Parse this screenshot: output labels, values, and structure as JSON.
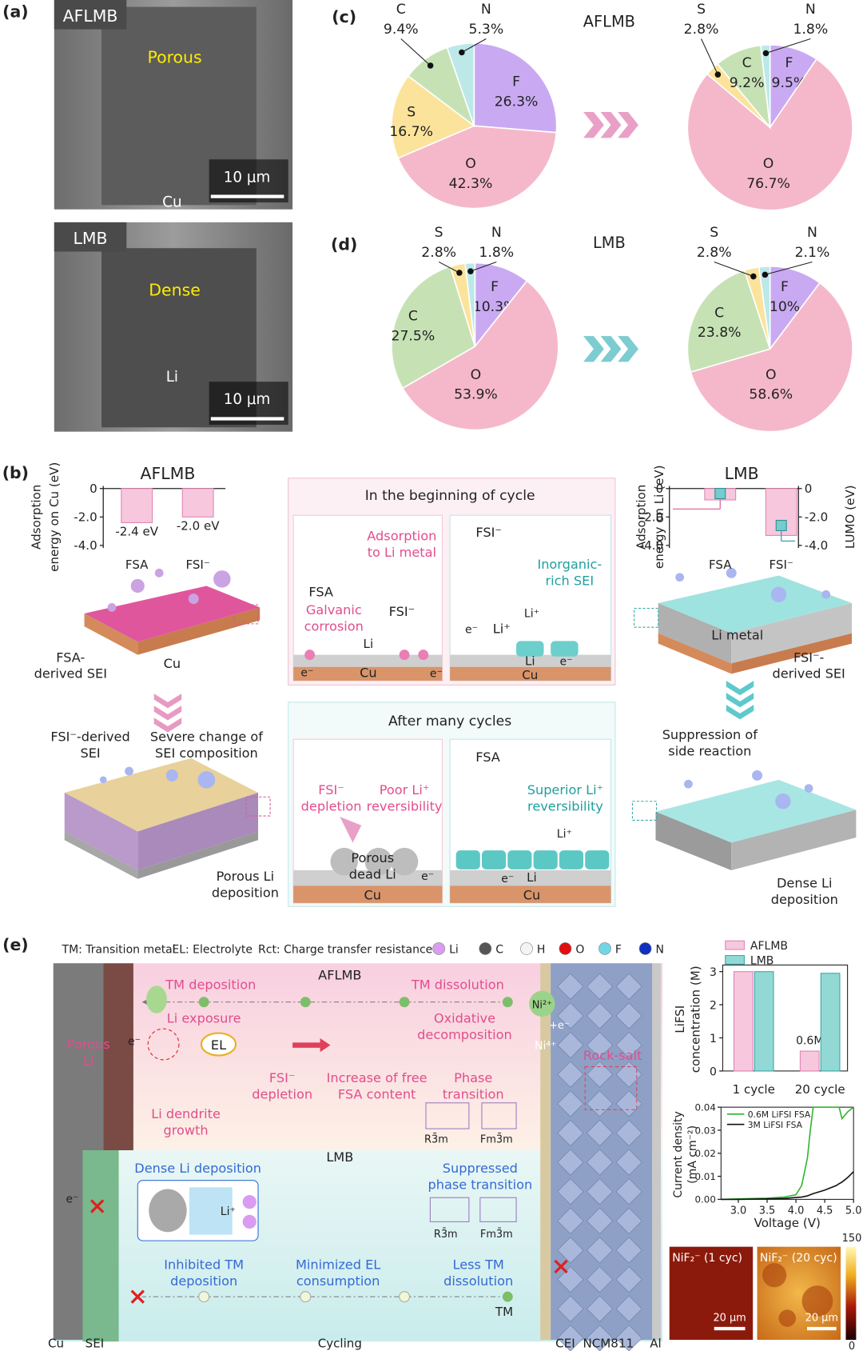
{
  "panel_labels": [
    "(a)",
    "(b)",
    "(c)",
    "(d)",
    "(e)"
  ],
  "panel_a": {
    "top": {
      "tag": "AFLMB",
      "region": "Porous",
      "substrate": "Cu",
      "scale_bar": "10 μm"
    },
    "bottom": {
      "tag": "LMB",
      "region": "Dense",
      "substrate": "Li",
      "scale_bar": "10 μm"
    }
  },
  "panel_c": {
    "title": "AFLMB"
  },
  "panel_d": {
    "title": "LMB"
  },
  "panel_b": {
    "afl_title": "AFLMB",
    "lmb_title": "LMB",
    "afl_ylabel": [
      "Adsorption",
      "energy on Cu (eV)"
    ],
    "lmb_ylabel": [
      "Adsorption",
      "energy on Li (eV)"
    ],
    "lmb_y2label": "LUMO (eV)",
    "begin": {
      "title": "In the beginning of cycle",
      "adsorption": [
        "Adsorption",
        "to Li metal"
      ],
      "fsa": "FSA",
      "galvanic": [
        "Galvanic",
        "corrosion"
      ],
      "fsi_left": "FSI⁻",
      "li_left": "Li",
      "cu_left": "Cu",
      "e_left1": "e⁻",
      "e_left2": "e⁻",
      "fsi_right": "FSI⁻",
      "inorganic": [
        "Inorganic-",
        "rich SEI"
      ],
      "e_right1": "e⁻",
      "li_ion1": "Li⁺",
      "li_ion2": "Li⁺",
      "li_right": "Li",
      "e_right2": "e⁻",
      "cu_right": "Cu"
    },
    "after": {
      "title": "After many cycles",
      "depletion": [
        "FSI⁻",
        "depletion"
      ],
      "poor": [
        "Poor Li⁺",
        "reversibility"
      ],
      "dead": [
        "Porous",
        "dead Li"
      ],
      "e_left": "e⁻",
      "cu_left": "Cu",
      "fsa": "FSA",
      "superior": [
        "Superior Li⁺",
        "reversibility"
      ],
      "li_ion": "Li⁺",
      "e_right": "e⁻",
      "li_right": "Li",
      "cu_right": "Cu"
    },
    "afl_slab": {
      "sei": [
        "FSA-",
        "derived SEI"
      ],
      "cu": "Cu",
      "fsi_sei": [
        "FSI⁻-derived",
        "SEI"
      ],
      "change": [
        "Severe change of",
        "SEI composition"
      ],
      "porous": [
        "Porous Li",
        "deposition"
      ]
    },
    "lmb_slab": {
      "metal": "Li metal",
      "sei": [
        "FSI⁻-",
        "derived SEI"
      ],
      "suppression": [
        "Suppression of",
        "side reaction"
      ],
      "dense": [
        "Dense Li",
        "deposition"
      ]
    }
  },
  "panel_e": {
    "legend": [
      "TM: Transition metal",
      "EL: Electrolyte",
      "Rct: Charge transfer resistance"
    ],
    "atoms": [
      "Li",
      "C",
      "H",
      "O",
      "F",
      "N"
    ],
    "afl": {
      "title": "AFLMB",
      "tm_dep": "TM deposition",
      "tm_dis": "TM dissolution",
      "ni2": "Ni²⁺",
      "plus_e": "+e⁻",
      "ni4": "Ni⁴⁺",
      "li_exp": "Li exposure",
      "porous": [
        "Porous",
        "Li"
      ],
      "e": "e⁻",
      "el": "EL",
      "oxidative": [
        "Oxidative",
        "decomposition"
      ],
      "rock": "Rock-salt",
      "depletion": [
        "FSI⁻",
        "depletion"
      ],
      "increase": [
        "Increase of free",
        "FSA content"
      ],
      "phase": [
        "Phase",
        "transition"
      ],
      "dendrite": [
        "Li dendrite",
        "growth"
      ],
      "r3m": "R3̄m",
      "fm3m": "Fm3̄m"
    },
    "lmb": {
      "title": "LMB",
      "dense": "Dense Li deposition",
      "li_ion": "Li⁺",
      "e": "e⁻",
      "suppressed": [
        "Suppressed",
        "phase transition"
      ],
      "r3m": "R3̄m",
      "fm3m": "Fm3̄m",
      "inhibited": [
        "Inhibited TM",
        "deposition"
      ],
      "minimized": [
        "Minimized EL",
        "consumption"
      ],
      "less": [
        "Less TM",
        "dissolution"
      ],
      "tm": "TM"
    },
    "bottom": [
      "Cu",
      "SEI",
      "Cycling",
      "CEI",
      "NCM811",
      "Al"
    ],
    "maps": [
      {
        "title": "NiF₂⁻ (1 cyc)",
        "scale_bar": "20 μm"
      },
      {
        "title": "NiF₂⁻ (20 cyc)",
        "scale_bar": "20 μm"
      }
    ],
    "colorbar": {
      "ticks": [
        150,
        0
      ]
    }
  },
  "chart_data": [
    {
      "type": "pie",
      "categories": [
        "F",
        "O",
        "S",
        "C",
        "N"
      ],
      "values": [
        26.3,
        42.3,
        16.7,
        9.4,
        5.3
      ],
      "value_labels": [
        "26.3%",
        "42.3%",
        "16.7%",
        "9.4%",
        "5.3%"
      ],
      "colors": [
        "#c9aaf2",
        "#f5b8cb",
        "#fbe39b",
        "#c6e2b5",
        "#bce8e8"
      ]
    },
    {
      "type": "pie",
      "categories": [
        "F",
        "O",
        "S",
        "C",
        "N"
      ],
      "values": [
        9.5,
        76.7,
        2.8,
        9.2,
        1.8
      ],
      "value_labels": [
        "9.5%",
        "76.7%",
        "2.8%",
        "9.2%",
        "1.8%"
      ],
      "colors": [
        "#c9aaf2",
        "#f5b8cb",
        "#fbe39b",
        "#c6e2b5",
        "#bce8e8"
      ]
    },
    {
      "type": "pie",
      "categories": [
        "F",
        "O",
        "C",
        "S",
        "N"
      ],
      "values": [
        10.3,
        53.9,
        27.5,
        2.8,
        1.8
      ],
      "value_labels": [
        "10.3%",
        "53.9%",
        "27.5%",
        "2.8%",
        "1.8%"
      ],
      "colors": [
        "#c9aaf2",
        "#f5b8cb",
        "#c6e2b5",
        "#fbe39b",
        "#bce8e8"
      ]
    },
    {
      "type": "pie",
      "categories": [
        "F",
        "O",
        "C",
        "S",
        "N"
      ],
      "values": [
        10,
        58.6,
        23.8,
        2.8,
        2.1
      ],
      "value_labels": [
        "10%",
        "58.6%",
        "23.8%",
        "2.8%",
        "2.1%"
      ],
      "colors": [
        "#c9aaf2",
        "#f5b8cb",
        "#c6e2b5",
        "#fbe39b",
        "#bce8e8"
      ]
    },
    {
      "type": "bar",
      "categories": [
        "FSA",
        "FSI⁻"
      ],
      "values": [
        -2.4,
        -2.0
      ],
      "value_labels": [
        "-2.4 eV",
        "-2.0 eV"
      ],
      "color": "#f7c8dd",
      "ylim": [
        -4,
        0
      ],
      "yticks": [
        0,
        {
          "value": -2,
          "label": "-2.0"
        },
        {
          "value": -4,
          "label": "-4.0"
        }
      ]
    },
    {
      "type": "bar",
      "categories": [
        "FSA",
        "FSI⁻"
      ],
      "series": [
        {
          "color": "#f7c8dd",
          "values": [
            -0.8,
            -3.3
          ]
        },
        {
          "axis": "y2",
          "color": "#74cccc",
          "values": [
            -0.35,
            -2.6
          ]
        }
      ],
      "ylim": [
        -4,
        0
      ],
      "yticks": [
        0,
        {
          "value": -2,
          "label": "-2.0"
        },
        {
          "value": -4,
          "label": "-4.0"
        }
      ],
      "y2lim": [
        -4,
        0
      ],
      "y2ticks": [
        0,
        {
          "value": -2,
          "label": "-2.0"
        },
        {
          "value": -4,
          "label": "-4.0"
        }
      ]
    },
    {
      "type": "bar",
      "categories": [
        "1 cycle",
        "20 cycle"
      ],
      "ylabel": [
        "LiFSI",
        "concentration (M)"
      ],
      "series": [
        {
          "name": "AFLMB",
          "color": "#f7c8dd",
          "values": [
            3,
            0.6
          ],
          "value_labels": [
            null,
            "0.6M"
          ]
        },
        {
          "name": "LMB",
          "color": "#92d9d5",
          "values": [
            3,
            2.95
          ]
        }
      ],
      "ylim": [
        0,
        3.2
      ],
      "yticks": [
        0,
        1,
        2,
        3
      ]
    },
    {
      "type": "line",
      "xlabel": "Voltage (V)",
      "ylabel": [
        "Current density",
        "(mA cm⁻²)"
      ],
      "x": [
        2.7,
        3.0,
        3.5,
        3.8,
        4.0,
        4.1,
        4.2,
        4.25,
        4.3,
        4.5,
        4.7,
        4.75,
        4.8,
        4.9,
        5.0
      ],
      "series": [
        {
          "name": "0.6M LiFSI FSA",
          "color": "#2fb52f",
          "values": [
            0,
            0.0002,
            0.0005,
            0.001,
            0.002,
            0.006,
            0.018,
            0.03,
            0.04,
            0.04,
            0.04,
            0.04,
            0.035,
            0.038,
            0.04
          ]
        },
        {
          "name": "3M LiFSI FSA",
          "color": "#111111",
          "values": [
            0,
            0,
            0.0002,
            0.0004,
            0.0008,
            0.001,
            0.0015,
            0.002,
            0.0025,
            0.004,
            0.006,
            0.0068,
            0.0075,
            0.0095,
            0.012
          ]
        }
      ],
      "xlim": [
        2.7,
        5.0
      ],
      "xticks": [
        {
          "value": 3,
          "label": "3.0"
        },
        3.5,
        {
          "value": 4,
          "label": "4.0"
        },
        4.5,
        {
          "value": 5,
          "label": "5.0"
        }
      ],
      "ylim": [
        0,
        0.04
      ],
      "yticks": [
        {
          "value": 0,
          "label": "0.00"
        },
        0.01,
        0.02,
        0.03,
        0.04
      ]
    }
  ]
}
